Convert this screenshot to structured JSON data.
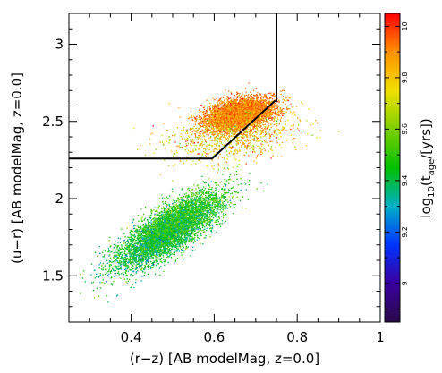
{
  "chart_data": {
    "type": "scatter",
    "xlabel": "(r−z) [AB modelMag, z=0.0]",
    "ylabel": "(u−r) [AB modelMag, z=0.0]",
    "xlim": [
      0.25,
      1.0
    ],
    "ylim": [
      1.2,
      3.2
    ],
    "x_ticks": [
      "0.4",
      "0.6",
      "0.8",
      "1"
    ],
    "x_tick_values": [
      0.4,
      0.6,
      0.8,
      1.0
    ],
    "y_ticks": [
      "1.5",
      "2",
      "2.5",
      "3"
    ],
    "y_tick_values": [
      1.5,
      2.0,
      2.5,
      3.0
    ],
    "colorbar": {
      "label_parts": [
        "log",
        "10",
        "(t",
        "age",
        "/[yrs])"
      ],
      "range": [
        8.85,
        10.05
      ],
      "ticks": [
        "9",
        "9.2",
        "9.4",
        "9.6",
        "9.8",
        "10"
      ],
      "tick_values": [
        9.0,
        9.2,
        9.4,
        9.6,
        9.8,
        10.0
      ],
      "colormap": [
        "#2a0a4a",
        "#3a00a0",
        "#0033ff",
        "#00b0c8",
        "#00c000",
        "#7ed000",
        "#f0e000",
        "#ff9000",
        "#ff0000"
      ]
    },
    "selection_boundary": {
      "x": [
        0.25,
        0.595,
        0.745,
        0.75,
        0.75
      ],
      "y": [
        2.26,
        2.26,
        2.63,
        2.63,
        3.2
      ]
    },
    "series": [
      {
        "center_x": 0.49,
        "center_y": 1.8,
        "sd_along": 0.135,
        "sd_perp": 0.035,
        "slope": 2.3,
        "age_center": 9.45,
        "age_spread": 0.09,
        "count": 6500
      },
      {
        "center_x": 0.66,
        "center_y": 2.55,
        "sd_along": 0.055,
        "sd_perp": 0.035,
        "slope": 1.7,
        "age_center": 9.9,
        "age_spread": 0.06,
        "count": 5500
      },
      {
        "center_x": 0.64,
        "center_y": 2.4,
        "sd_along": 0.09,
        "sd_perp": 0.07,
        "slope": 1.0,
        "age_center": 9.8,
        "age_spread": 0.12,
        "count": 900
      }
    ]
  }
}
